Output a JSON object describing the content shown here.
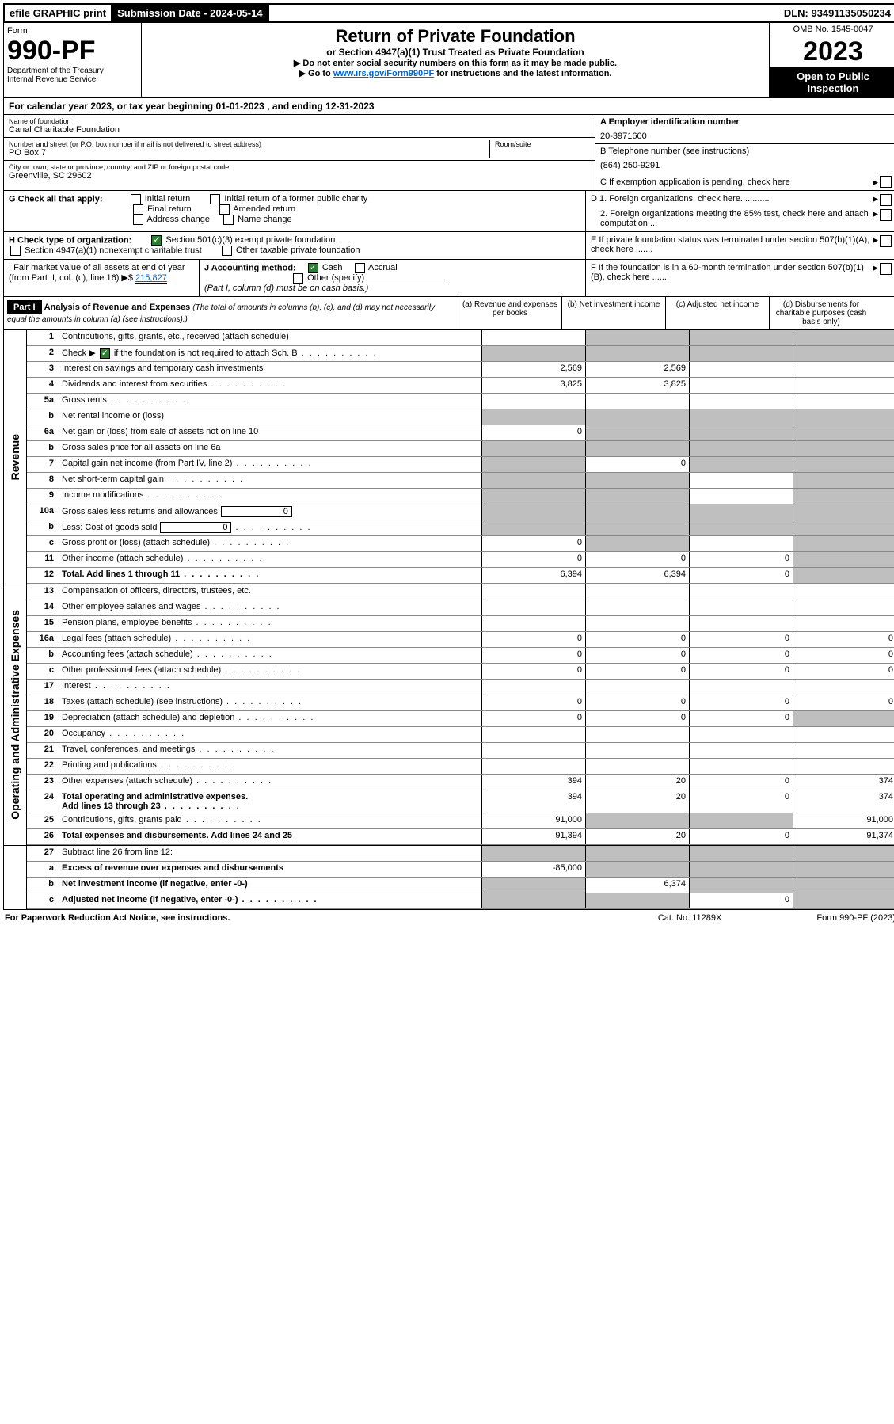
{
  "topbar": {
    "efile": "efile GRAPHIC print",
    "subdate_label": "Submission Date - 2024-05-14",
    "dln": "DLN: 93491135050234"
  },
  "header": {
    "form_label": "Form",
    "form_no": "990-PF",
    "dept": "Department of the Treasury\nInternal Revenue Service",
    "title": "Return of Private Foundation",
    "sub": "or Section 4947(a)(1) Trust Treated as Private Foundation",
    "note1": "▶ Do not enter social security numbers on this form as it may be made public.",
    "note2_pre": "▶ Go to ",
    "note2_link": "www.irs.gov/Form990PF",
    "note2_post": " for instructions and the latest information.",
    "omb": "OMB No. 1545-0047",
    "year": "2023",
    "open": "Open to Public Inspection"
  },
  "cal": "For calendar year 2023, or tax year beginning 01-01-2023               , and ending 12-31-2023",
  "info": {
    "name_label": "Name of foundation",
    "name": "Canal Charitable Foundation",
    "addr_label": "Number and street (or P.O. box number if mail is not delivered to street address)",
    "addr": "PO Box 7",
    "room_label": "Room/suite",
    "city_label": "City or town, state or province, country, and ZIP or foreign postal code",
    "city": "Greenville, SC  29602",
    "A_label": "A Employer identification number",
    "A_val": "20-3971600",
    "B_label": "B Telephone number (see instructions)",
    "B_val": "(864) 250-9291",
    "C_label": "C If exemption application is pending, check here",
    "G_label": "G Check all that apply:",
    "G_opts": [
      "Initial return",
      "Initial return of a former public charity",
      "Final return",
      "Amended return",
      "Address change",
      "Name change"
    ],
    "D1": "D 1. Foreign organizations, check here............",
    "D2": "2. Foreign organizations meeting the 85% test, check here and attach computation ...",
    "H_label": "H Check type of organization:",
    "H1": "Section 501(c)(3) exempt private foundation",
    "H2": "Section 4947(a)(1) nonexempt charitable trust",
    "H3": "Other taxable private foundation",
    "E_label": "E If private foundation status was terminated under section 507(b)(1)(A), check here .......",
    "I_label": "I Fair market value of all assets at end of year (from Part II, col. (c), line 16) ▶$ ",
    "I_val": "215,827",
    "J_label": "J Accounting method:",
    "J_cash": "Cash",
    "J_accrual": "Accrual",
    "J_other": "Other (specify)",
    "J_note": "(Part I, column (d) must be on cash basis.)",
    "F_label": "F If the foundation is in a 60-month termination under section 507(b)(1)(B), check here .......",
    "part_label": "Part I",
    "part_title": "Analysis of Revenue and Expenses",
    "part_note": "(The total of amounts in columns (b), (c), and (d) may not necessarily equal the amounts in column (a) (see instructions).)",
    "col_a": "(a)   Revenue and expenses per books",
    "col_b": "(b)   Net investment income",
    "col_c": "(c)   Adjusted net income",
    "col_d": "(d)  Disbursements for charitable purposes (cash basis only)"
  },
  "rows": {
    "r1": {
      "n": "1",
      "d": "Contributions, gifts, grants, etc., received (attach schedule)"
    },
    "r2": {
      "n": "2",
      "d": "Check ▶ ",
      "d2": " if the foundation is not required to attach Sch. B"
    },
    "r3": {
      "n": "3",
      "d": "Interest on savings and temporary cash investments",
      "a": "2,569",
      "b": "2,569"
    },
    "r4": {
      "n": "4",
      "d": "Dividends and interest from securities",
      "a": "3,825",
      "b": "3,825"
    },
    "r5a": {
      "n": "5a",
      "d": "Gross rents"
    },
    "r5b": {
      "n": "b",
      "d": "Net rental income or (loss)"
    },
    "r6a": {
      "n": "6a",
      "d": "Net gain or (loss) from sale of assets not on line 10",
      "a": "0"
    },
    "r6b": {
      "n": "b",
      "d": "Gross sales price for all assets on line 6a"
    },
    "r7": {
      "n": "7",
      "d": "Capital gain net income (from Part IV, line 2)",
      "b": "0"
    },
    "r8": {
      "n": "8",
      "d": "Net short-term capital gain"
    },
    "r9": {
      "n": "9",
      "d": "Income modifications"
    },
    "r10a": {
      "n": "10a",
      "d": "Gross sales less returns and allowances",
      "box": "0"
    },
    "r10b": {
      "n": "b",
      "d": "Less: Cost of goods sold",
      "box": "0"
    },
    "r10c": {
      "n": "c",
      "d": "Gross profit or (loss) (attach schedule)",
      "a": "0"
    },
    "r11": {
      "n": "11",
      "d": "Other income (attach schedule)",
      "a": "0",
      "b": "0",
      "c": "0"
    },
    "r12": {
      "n": "12",
      "d": "Total. Add lines 1 through 11",
      "a": "6,394",
      "b": "6,394",
      "c": "0"
    },
    "r13": {
      "n": "13",
      "d": "Compensation of officers, directors, trustees, etc."
    },
    "r14": {
      "n": "14",
      "d": "Other employee salaries and wages"
    },
    "r15": {
      "n": "15",
      "d": "Pension plans, employee benefits"
    },
    "r16a": {
      "n": "16a",
      "d": "Legal fees (attach schedule)",
      "a": "0",
      "b": "0",
      "c": "0",
      "dd": "0"
    },
    "r16b": {
      "n": "b",
      "d": "Accounting fees (attach schedule)",
      "a": "0",
      "b": "0",
      "c": "0",
      "dd": "0"
    },
    "r16c": {
      "n": "c",
      "d": "Other professional fees (attach schedule)",
      "a": "0",
      "b": "0",
      "c": "0",
      "dd": "0"
    },
    "r17": {
      "n": "17",
      "d": "Interest"
    },
    "r18": {
      "n": "18",
      "d": "Taxes (attach schedule) (see instructions)",
      "a": "0",
      "b": "0",
      "c": "0",
      "dd": "0"
    },
    "r19": {
      "n": "19",
      "d": "Depreciation (attach schedule) and depletion",
      "a": "0",
      "b": "0",
      "c": "0"
    },
    "r20": {
      "n": "20",
      "d": "Occupancy"
    },
    "r21": {
      "n": "21",
      "d": "Travel, conferences, and meetings"
    },
    "r22": {
      "n": "22",
      "d": "Printing and publications"
    },
    "r23": {
      "n": "23",
      "d": "Other expenses (attach schedule)",
      "a": "394",
      "b": "20",
      "c": "0",
      "dd": "374"
    },
    "r24": {
      "n": "24",
      "d": "Total operating and administrative expenses.",
      "d2": "Add lines 13 through 23",
      "a": "394",
      "b": "20",
      "c": "0",
      "dd": "374"
    },
    "r25": {
      "n": "25",
      "d": "Contributions, gifts, grants paid",
      "a": "91,000",
      "dd": "91,000"
    },
    "r26": {
      "n": "26",
      "d": "Total expenses and disbursements. Add lines 24 and 25",
      "a": "91,394",
      "b": "20",
      "c": "0",
      "dd": "91,374"
    },
    "r27": {
      "n": "27",
      "d": "Subtract line 26 from line 12:"
    },
    "r27a": {
      "n": "a",
      "d": "Excess of revenue over expenses and disbursements",
      "a": "-85,000"
    },
    "r27b": {
      "n": "b",
      "d": "Net investment income (if negative, enter -0-)",
      "b": "6,374"
    },
    "r27c": {
      "n": "c",
      "d": "Adjusted net income (if negative, enter -0-)",
      "c": "0"
    }
  },
  "sidebar": {
    "rev": "Revenue",
    "exp": "Operating and Administrative Expenses"
  },
  "footer": {
    "left": "For Paperwork Reduction Act Notice, see instructions.",
    "center": "Cat. No. 11289X",
    "right": "Form 990-PF (2023)"
  }
}
